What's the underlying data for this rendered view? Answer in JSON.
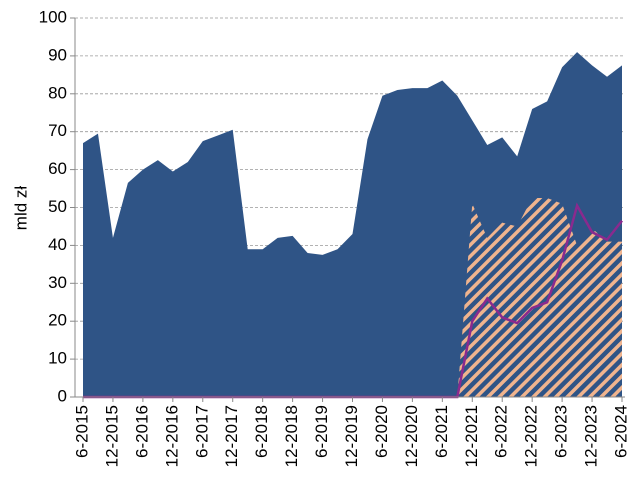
{
  "chart_data": {
    "type": "area",
    "y_label": "mld zł",
    "categories": [
      "6-2015",
      null,
      "12-2015",
      null,
      "6-2016",
      null,
      "12-2016",
      null,
      "6-2017",
      null,
      "12-2017",
      null,
      "6-2018",
      null,
      "12-2018",
      null,
      "6-2019",
      null,
      "12-2019",
      null,
      "6-2020",
      null,
      "12-2020",
      null,
      "6-2021",
      null,
      "12-2021",
      null,
      "6-2022",
      null,
      "12-2022",
      null,
      "6-2023",
      null,
      "12-2023",
      null,
      "6-2024"
    ],
    "series": [
      {
        "kind": "area",
        "color": "#2f5486",
        "values": [
          67,
          69.5,
          42,
          56.5,
          60,
          62.5,
          59.5,
          62,
          67.5,
          69,
          70.5,
          39,
          39,
          42,
          42.5,
          38,
          37.5,
          39,
          43,
          68,
          79.5,
          81,
          81.5,
          81.5,
          83.5,
          79.5,
          73,
          66.5,
          68.5,
          63.5,
          76,
          78,
          87,
          91,
          87.5,
          84.5,
          87.5
        ]
      },
      {
        "kind": "hatched",
        "color": "#f0b48e",
        "values": [
          null,
          null,
          null,
          null,
          null,
          null,
          null,
          null,
          null,
          null,
          null,
          null,
          null,
          null,
          null,
          null,
          null,
          null,
          null,
          null,
          null,
          null,
          null,
          null,
          null,
          0,
          51,
          42,
          46,
          45,
          52.5,
          52.5,
          51,
          40,
          44.5,
          41,
          41
        ]
      },
      {
        "kind": "line",
        "color": "#8a2a8e",
        "values": [
          0,
          0,
          0,
          0,
          0,
          0,
          0,
          0,
          0,
          0,
          0,
          0,
          0,
          0,
          0,
          0,
          0,
          0,
          0,
          0,
          0,
          0,
          0,
          0,
          0,
          0,
          20,
          26,
          21,
          19.5,
          23.5,
          25,
          36,
          50.5,
          43.5,
          41.5,
          46.5
        ]
      }
    ],
    "ylim": [
      0,
      100
    ],
    "yticks": [
      0,
      10,
      20,
      30,
      40,
      50,
      60,
      70,
      80,
      90,
      100
    ],
    "grid": true
  }
}
